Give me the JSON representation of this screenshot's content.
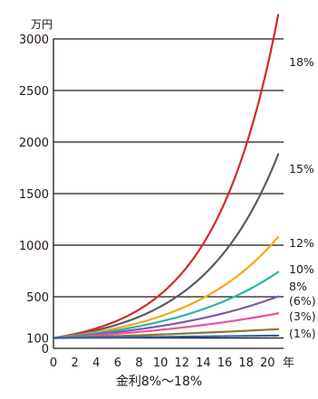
{
  "chart_data": {
    "type": "line",
    "title": "",
    "caption": "金利8%〜18%",
    "ylabel": "万円",
    "xlabel": "年",
    "xlim": [
      0,
      21.5
    ],
    "ylim": [
      0,
      3000
    ],
    "grid": "horizontal",
    "x_ticks": [
      0,
      2,
      4,
      6,
      8,
      10,
      12,
      14,
      16,
      18,
      20
    ],
    "y_ticks": [
      0,
      100,
      500,
      1000,
      1500,
      2000,
      2500,
      3000
    ],
    "series": [
      {
        "name": "18%",
        "color": "#d42a2a",
        "rate": 0.18,
        "x": [
          0,
          2,
          4,
          6,
          8,
          10,
          12,
          14,
          16,
          18,
          20,
          21
        ],
        "y": [
          100,
          139,
          194,
          270,
          376,
          523,
          729,
          1015,
          1414,
          1968,
          2739,
          3232
        ]
      },
      {
        "name": "15%",
        "color": "#5b5b61",
        "rate": 0.15,
        "x": [
          0,
          2,
          4,
          6,
          8,
          10,
          12,
          14,
          16,
          18,
          20,
          21
        ],
        "y": [
          100,
          132,
          175,
          231,
          306,
          405,
          535,
          708,
          936,
          1238,
          1637,
          1882
        ]
      },
      {
        "name": "12%",
        "color": "#f3a71a",
        "rate": 0.12,
        "x": [
          0,
          2,
          4,
          6,
          8,
          10,
          12,
          14,
          16,
          18,
          20,
          21
        ],
        "y": [
          100,
          125,
          157,
          197,
          248,
          311,
          390,
          489,
          613,
          769,
          965,
          1080
        ]
      },
      {
        "name": "10%",
        "color": "#2fb4a8",
        "rate": 0.1,
        "x": [
          0,
          2,
          4,
          6,
          8,
          10,
          12,
          14,
          16,
          18,
          20,
          21
        ],
        "y": [
          100,
          121,
          146,
          177,
          214,
          259,
          314,
          380,
          459,
          556,
          673,
          740
        ]
      },
      {
        "name": "8%",
        "color": "#7b5aa6",
        "rate": 0.08,
        "x": [
          0,
          2,
          4,
          6,
          8,
          10,
          12,
          14,
          16,
          18,
          20,
          21
        ],
        "y": [
          100,
          117,
          136,
          159,
          185,
          216,
          252,
          294,
          343,
          400,
          466,
          503
        ]
      },
      {
        "name": "(6%)",
        "color": "#e7559a",
        "rate": 0.06,
        "x": [
          0,
          2,
          4,
          6,
          8,
          10,
          12,
          14,
          16,
          18,
          20,
          21
        ],
        "y": [
          100,
          112,
          126,
          142,
          159,
          179,
          201,
          226,
          254,
          285,
          321,
          340
        ]
      },
      {
        "name": "(3%)",
        "color": "#8c7b2e",
        "rate": 0.03,
        "x": [
          0,
          2,
          4,
          6,
          8,
          10,
          12,
          14,
          16,
          18,
          20,
          21
        ],
        "y": [
          100,
          106,
          113,
          119,
          127,
          134,
          143,
          151,
          160,
          170,
          181,
          186
        ]
      },
      {
        "name": "(1%)",
        "color": "#2a5ea8",
        "rate": 0.01,
        "x": [
          0,
          2,
          4,
          6,
          8,
          10,
          12,
          14,
          16,
          18,
          20,
          21
        ],
        "y": [
          100,
          102,
          104,
          106,
          108,
          110,
          113,
          115,
          117,
          120,
          122,
          123
        ]
      }
    ]
  }
}
